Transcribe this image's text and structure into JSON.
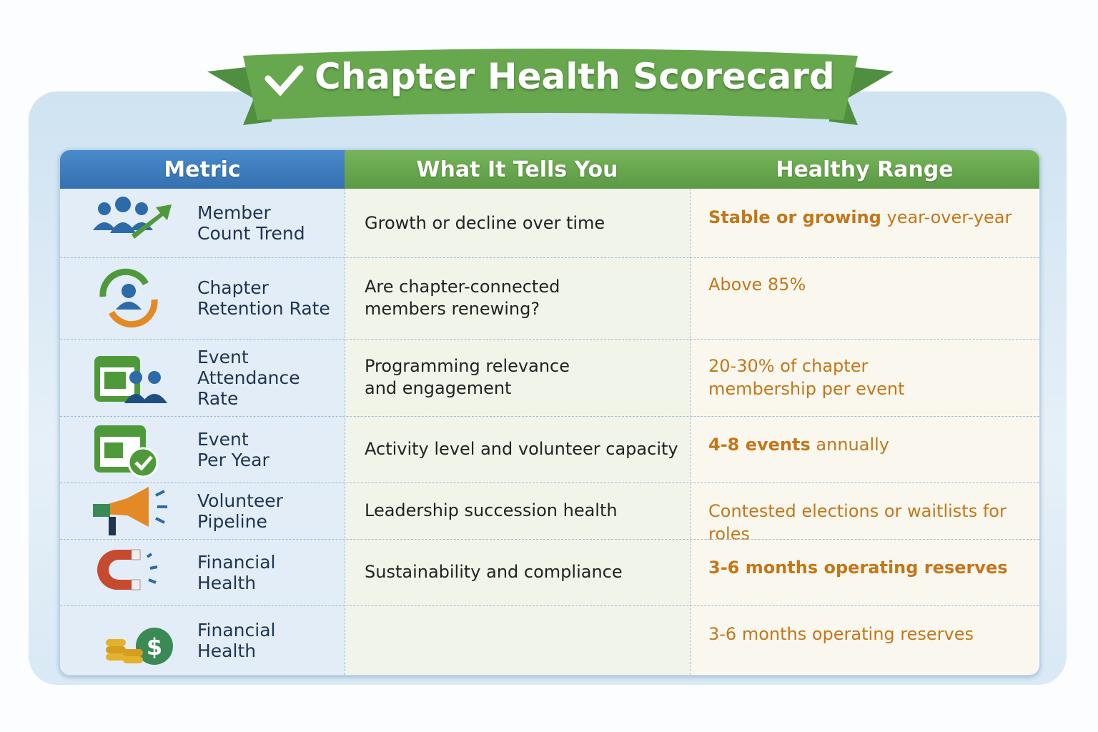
{
  "header": {
    "title": "Chapter Health Scorecard"
  },
  "table": {
    "columns": [
      "Metric",
      "What It Tells You",
      "Healthy Range"
    ],
    "rows": [
      {
        "metric": [
          "Member",
          "Count Trend"
        ],
        "description": [
          "Growth or decline over time"
        ],
        "range_bold": "Stable or growing",
        "range": [
          "year-over-year"
        ]
      },
      {
        "metric": [
          "Chapter",
          "Retention Rate"
        ],
        "description": [
          "Are chapter-connected",
          "members renewing?"
        ],
        "range": [
          "Above 85%"
        ]
      },
      {
        "metric": [
          "Event",
          "Attendance",
          "Rate"
        ],
        "description": [
          "Programming relevance",
          "and engagement"
        ],
        "range": [
          "20-30% of chapter",
          "membership per event"
        ]
      },
      {
        "metric": [
          "Event",
          "Per Year"
        ],
        "description": [
          "Activity level and volunteer capacity"
        ],
        "range_bold": "4-8 events",
        "range": [
          "annually"
        ]
      },
      {
        "metric": [
          "Volunteer",
          "Pipeline"
        ],
        "description": [
          "Leadership succession health"
        ],
        "range": [
          "Contested elections or waitlists for roles"
        ]
      },
      {
        "metric": [
          "Financial",
          "Health"
        ],
        "description": [
          "Sustainability and compliance"
        ],
        "range_bold": "3-6 months operating reserves"
      },
      {
        "metric": [
          "Financial",
          "Health"
        ],
        "range": [
          "3-6 months operating reserves"
        ]
      }
    ]
  }
}
